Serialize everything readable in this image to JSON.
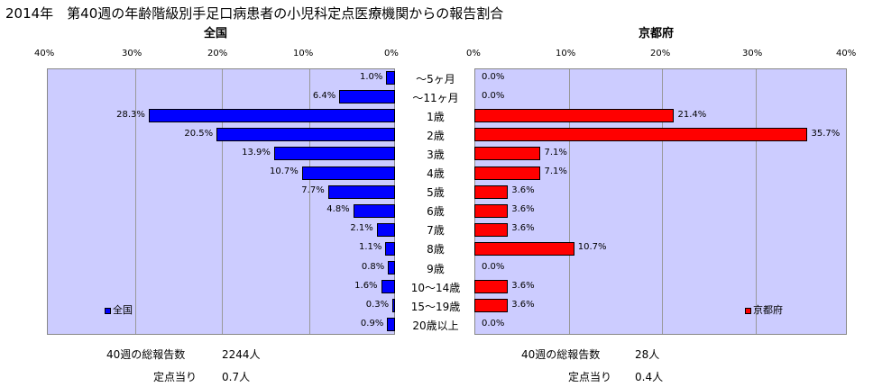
{
  "title": "2014年　第40週の年齢階級別手足口病患者の小児科定点医療機関からの報告割合",
  "chart_data": [
    {
      "type": "bar",
      "orientation": "horizontal",
      "direction": "right-to-left",
      "title": "全国",
      "legend": "全国",
      "legend_position": "bottom-left",
      "color": "#0000ff",
      "xlim": [
        0,
        40
      ],
      "ticks": [
        "0%",
        "10%",
        "20%",
        "30%",
        "40%"
      ],
      "grid": true,
      "categories": [
        "～5ヶ月",
        "～11ヶ月",
        "1歳",
        "2歳",
        "3歳",
        "4歳",
        "5歳",
        "6歳",
        "7歳",
        "8歳",
        "9歳",
        "10～14歳",
        "15～19歳",
        "20歳以上"
      ],
      "values": [
        1.0,
        6.4,
        28.3,
        20.5,
        13.9,
        10.7,
        7.7,
        4.8,
        2.1,
        1.1,
        0.8,
        1.6,
        0.3,
        0.9
      ],
      "labels": [
        "1.0%",
        "6.4%",
        "28.3%",
        "20.5%",
        "13.9%",
        "10.7%",
        "7.7%",
        "4.8%",
        "2.1%",
        "1.1%",
        "0.8%",
        "1.6%",
        "0.3%",
        "0.9%"
      ]
    },
    {
      "type": "bar",
      "orientation": "horizontal",
      "direction": "left-to-right",
      "title": "京都府",
      "legend": "京都府",
      "legend_position": "bottom-right",
      "color": "#ff0000",
      "xlim": [
        0,
        40
      ],
      "ticks": [
        "0%",
        "10%",
        "20%",
        "30%",
        "40%"
      ],
      "grid": true,
      "categories": [
        "～5ヶ月",
        "～11ヶ月",
        "1歳",
        "2歳",
        "3歳",
        "4歳",
        "5歳",
        "6歳",
        "7歳",
        "8歳",
        "9歳",
        "10～14歳",
        "15～19歳",
        "20歳以上"
      ],
      "values": [
        0.0,
        0.0,
        21.4,
        35.7,
        7.1,
        7.1,
        3.6,
        3.6,
        3.6,
        10.7,
        0.0,
        3.6,
        3.6,
        0.0
      ],
      "labels": [
        "0.0%",
        "0.0%",
        "21.4%",
        "35.7%",
        "7.1%",
        "7.1%",
        "3.6%",
        "3.6%",
        "3.6%",
        "10.7%",
        "0.0%",
        "3.6%",
        "3.6%",
        "0.0%"
      ]
    }
  ],
  "footer": {
    "national": {
      "total_label": "40週の総報告数",
      "total_value": "2244人",
      "per_label": "定点当り",
      "per_value": "0.7人"
    },
    "kyoto": {
      "total_label": "40週の総報告数",
      "total_value": "28人",
      "per_label": "定点当り",
      "per_value": "0.4人"
    }
  }
}
